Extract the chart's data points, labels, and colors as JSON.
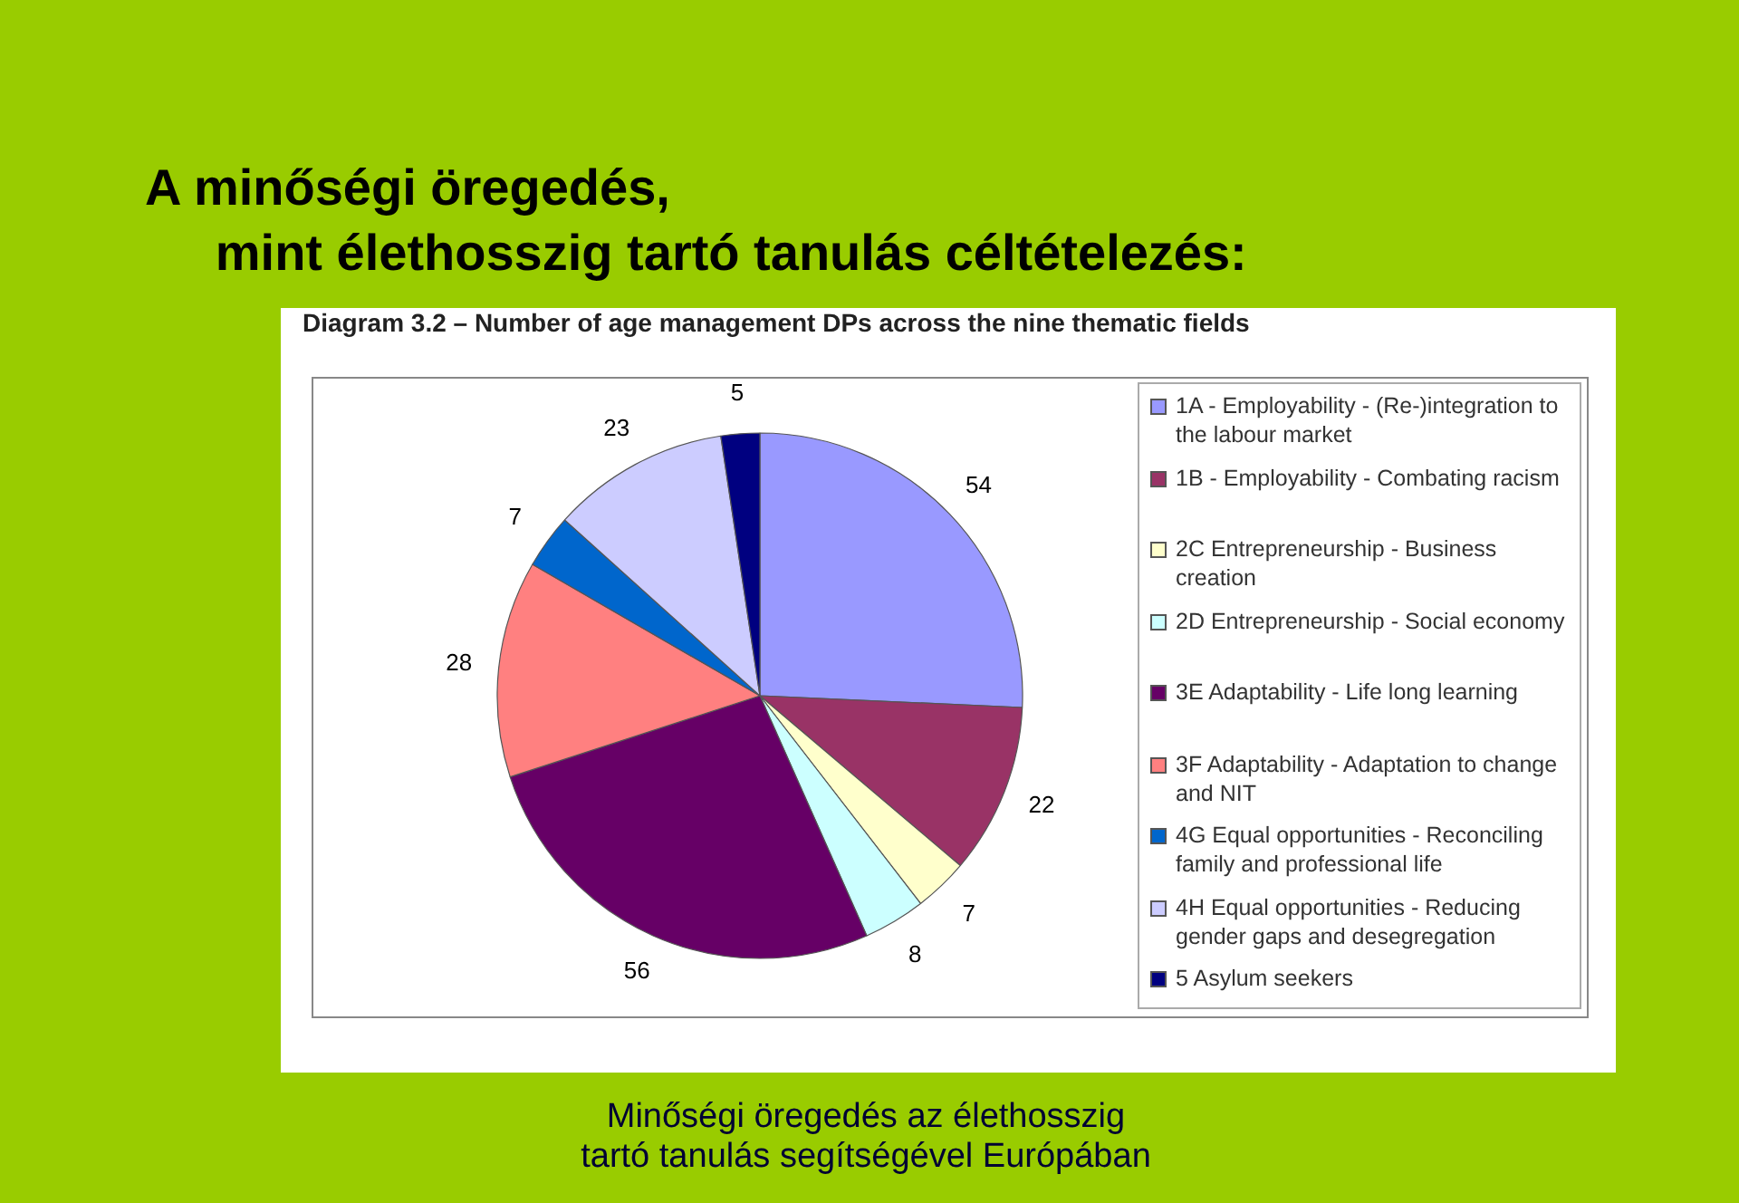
{
  "chart_data": {
    "type": "pie",
    "title": "A minőségi öregedés,\n     mint élethosszig tartó tanulás céltételezés:",
    "subtitle": "Diagram 3.2 – Number of age management DPs across the nine thematic fields",
    "categories": [
      "1A - Employability - (Re-)integration to the labour market",
      "1B - Employability - Combating racism",
      "2C Entrepreneurship - Business creation",
      "2D Entrepreneurship - Social economy",
      "3E Adaptability - Life long learning",
      "3F Adaptability - Adaptation to change and NIT",
      "4G Equal opportunities - Reconciling family and professional life",
      "4H Equal opportunities - Reducing gender gaps and desegregation",
      "5 Asylum seekers"
    ],
    "values": [
      54,
      22,
      7,
      8,
      56,
      28,
      7,
      23,
      5
    ],
    "colors": [
      "#9999ff",
      "#993366",
      "#ffffcc",
      "#ccffff",
      "#660066",
      "#ff8080",
      "#0066cc",
      "#ccccff",
      "#000080"
    ],
    "data_labels": true,
    "legend": "right",
    "annotations": [
      "Minőségi öregedés az élethosszig tartó tanulás segítségével Európában"
    ]
  }
}
